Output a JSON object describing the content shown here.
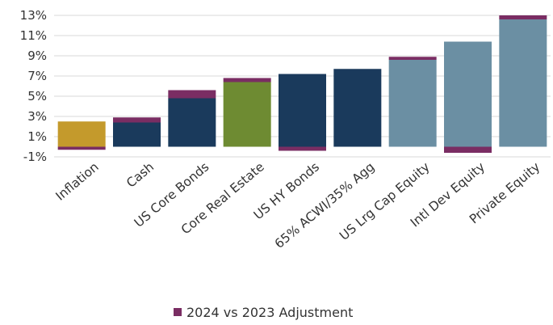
{
  "chart_data": {
    "type": "bar",
    "categories": [
      "Inflation",
      "Cash",
      "US Core Bonds",
      "Core Real Estate",
      "US HY Bonds",
      "65% ACWI/35% Agg",
      "US Lrg Cap Equity",
      "Intl Dev Equity",
      "Private Equity"
    ],
    "series": [
      {
        "values": [
          2.5,
          2.4,
          4.8,
          6.4,
          7.2,
          7.7,
          8.6,
          10.4,
          12.6
        ]
      },
      {
        "name": "2024 vs 2023 Adjustment",
        "values": [
          0.0,
          0.5,
          0.8,
          0.4,
          0.0,
          0.0,
          0.3,
          0.0,
          0.4
        ]
      }
    ],
    "negative_adjustment": [
      -0.3,
      0.0,
      0.0,
      0.0,
      -0.4,
      0.0,
      0.0,
      -0.6,
      0.0
    ],
    "category_colors": [
      "#c49a2c",
      "#1a3a5c",
      "#1a3a5c",
      "#6e8b32",
      "#1a3a5c",
      "#1a3a5c",
      "#6b8fa3",
      "#6b8fa3",
      "#6b8fa3"
    ],
    "adjustment_color": "#7a2d63",
    "y_ticks": [
      "13%",
      "11%",
      "9%",
      "7%",
      "5%",
      "3%",
      "1%",
      "-1%"
    ],
    "y_tick_values": [
      13,
      11,
      9,
      7,
      5,
      3,
      1,
      -1
    ],
    "ylim": [
      -1,
      13
    ],
    "grid": true,
    "legend_position": "bottom",
    "legend": [
      {
        "label": "2024 vs 2023 Adjustment",
        "color": "#7a2d63"
      }
    ]
  }
}
